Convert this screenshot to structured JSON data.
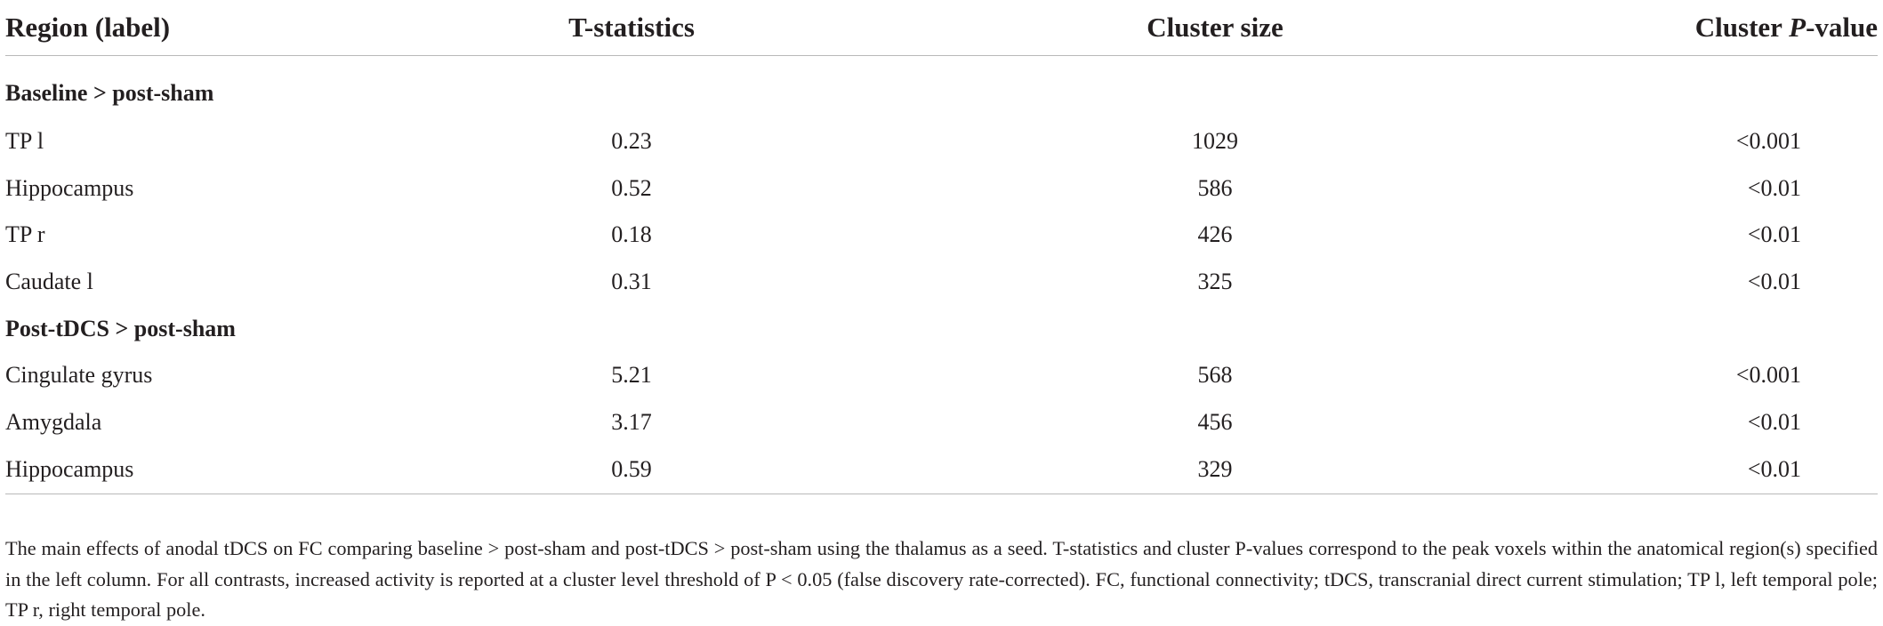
{
  "table": {
    "headers": {
      "region": "Region (label)",
      "tstat": "T-statistics",
      "cluster_size": "Cluster size",
      "cluster_p_prefix": "Cluster ",
      "cluster_p_italic": "P",
      "cluster_p_suffix": "-value"
    },
    "sections": [
      {
        "title": "Baseline > post-sham",
        "rows": [
          {
            "region": "TP l",
            "tstat": "0.23",
            "cluster_size": "1029",
            "p_value": "<0.001"
          },
          {
            "region": "Hippocampus",
            "tstat": "0.52",
            "cluster_size": "586",
            "p_value": "<0.01"
          },
          {
            "region": "TP r",
            "tstat": "0.18",
            "cluster_size": "426",
            "p_value": "<0.01"
          },
          {
            "region": "Caudate l",
            "tstat": "0.31",
            "cluster_size": "325",
            "p_value": "<0.01"
          }
        ]
      },
      {
        "title": "Post-tDCS > post-sham",
        "rows": [
          {
            "region": "Cingulate gyrus",
            "tstat": "5.21",
            "cluster_size": "568",
            "p_value": "<0.001"
          },
          {
            "region": "Amygdala",
            "tstat": "3.17",
            "cluster_size": "456",
            "p_value": "<0.01"
          },
          {
            "region": "Hippocampus",
            "tstat": "0.59",
            "cluster_size": "329",
            "p_value": "<0.01"
          }
        ]
      }
    ]
  },
  "footnote": "The main effects of anodal tDCS on FC comparing baseline > post-sham and post-tDCS > post-sham using the thalamus as a seed. T-statistics and cluster P-values correspond to the peak voxels within the anatomical region(s) specified in the left column. For all contrasts, increased activity is reported at a cluster level threshold of P < 0.05 (false discovery rate-corrected). FC, functional connectivity; tDCS, transcranial direct current stimulation; TP l, left temporal pole; TP r, right temporal pole."
}
